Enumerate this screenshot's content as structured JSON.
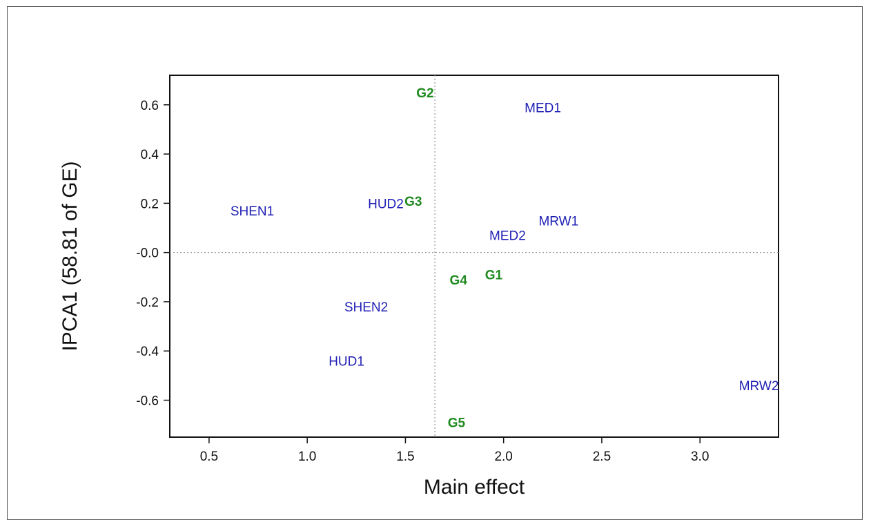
{
  "chart_data": {
    "type": "scatter",
    "title": "",
    "xlabel": "Main effect",
    "ylabel": "IPCA1 (58.81 of GE)",
    "xlim": [
      0.3,
      3.4
    ],
    "ylim": [
      -0.75,
      0.72
    ],
    "xticks": [
      0.5,
      1.0,
      1.5,
      2.0,
      2.5,
      3.0
    ],
    "xtick_labels": [
      "0.5",
      "1.0",
      "1.5",
      "2.0",
      "2.5",
      "3.0"
    ],
    "yticks": [
      0.6,
      0.4,
      0.2,
      0.0,
      -0.2,
      -0.4,
      -0.6
    ],
    "ytick_labels": [
      "0.6",
      "0.4",
      "0.2",
      "-0.0",
      "-0.2",
      "-0.4",
      "-0.6"
    ],
    "reference_lines": {
      "x": 1.65,
      "y": 0.0,
      "style": "dotted"
    },
    "grid": false,
    "legend": "none",
    "series": [
      {
        "color": "#1f1fb4",
        "points": [
          {
            "label": "MED1",
            "x": 2.2,
            "y": 0.59
          },
          {
            "label": "SHEN1",
            "x": 0.72,
            "y": 0.17
          },
          {
            "label": "HUD2",
            "x": 1.4,
            "y": 0.2
          },
          {
            "label": "MRW1",
            "x": 2.28,
            "y": 0.13
          },
          {
            "label": "MED2",
            "x": 2.02,
            "y": 0.07
          },
          {
            "label": "SHEN2",
            "x": 1.3,
            "y": -0.22
          },
          {
            "label": "HUD1",
            "x": 1.2,
            "y": -0.44
          },
          {
            "label": "MRW2",
            "x": 3.3,
            "y": -0.54
          }
        ]
      },
      {
        "color": "#1f8a1f",
        "points": [
          {
            "label": "G2",
            "x": 1.6,
            "y": 0.65
          },
          {
            "label": "G3",
            "x": 1.54,
            "y": 0.21
          },
          {
            "label": "G1",
            "x": 1.95,
            "y": -0.09
          },
          {
            "label": "G4",
            "x": 1.77,
            "y": -0.11
          },
          {
            "label": "G5",
            "x": 1.76,
            "y": -0.69
          }
        ]
      }
    ]
  }
}
